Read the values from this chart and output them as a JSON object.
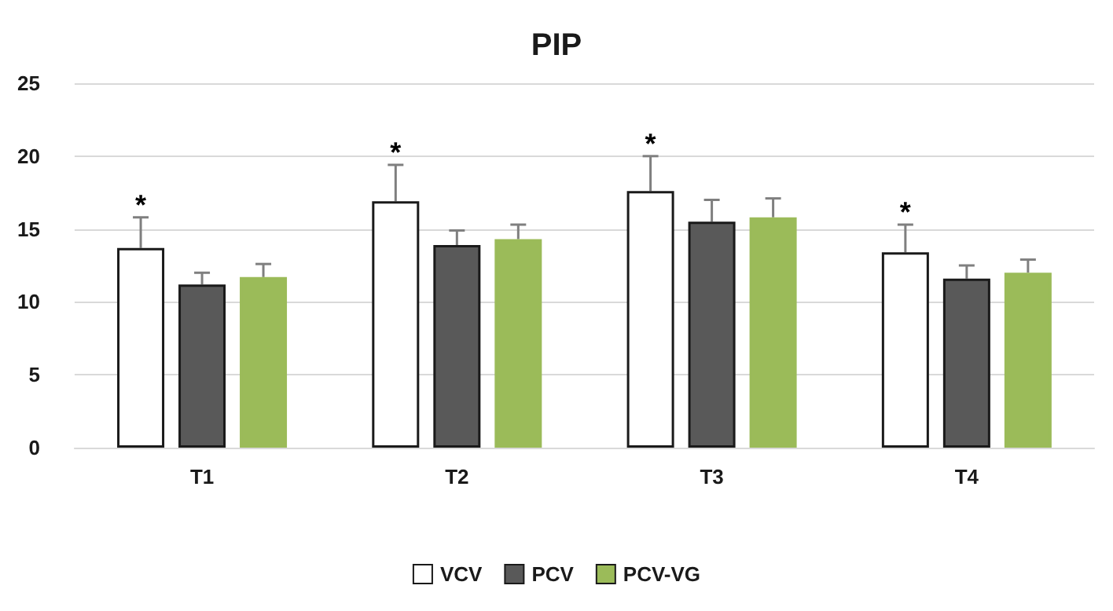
{
  "chart_data": {
    "type": "bar",
    "title": "PIP",
    "categories": [
      "T1",
      "T2",
      "T3",
      "T4"
    ],
    "series": [
      {
        "name": "VCV",
        "color": "#ffffff",
        "values": [
          13.7,
          16.9,
          17.6,
          13.4
        ],
        "value_labels": [
          "*",
          "*",
          "*",
          "*"
        ],
        "errors": [
          [
            13.7,
            15.8
          ],
          [
            16.9,
            19.4
          ],
          [
            17.6,
            20.0
          ],
          [
            13.4,
            15.3
          ]
        ]
      },
      {
        "name": "PCV",
        "color": "#595959",
        "values": [
          11.2,
          13.9,
          15.5,
          11.6
        ],
        "errors": [
          [
            11.2,
            12.0
          ],
          [
            13.9,
            14.9
          ],
          [
            15.5,
            17.0
          ],
          [
            11.6,
            12.5
          ]
        ]
      },
      {
        "name": "PCV-VG",
        "color": "#9bbb59",
        "values": [
          11.7,
          14.3,
          15.8,
          12.0
        ],
        "errors": [
          [
            11.7,
            12.6
          ],
          [
            14.3,
            15.3
          ],
          [
            15.8,
            17.1
          ],
          [
            12.0,
            12.9
          ]
        ]
      }
    ],
    "ylim": [
      0,
      25
    ],
    "yticks": [
      0,
      5,
      10,
      15,
      20,
      25
    ],
    "grid": "y",
    "legend": "bottom"
  }
}
